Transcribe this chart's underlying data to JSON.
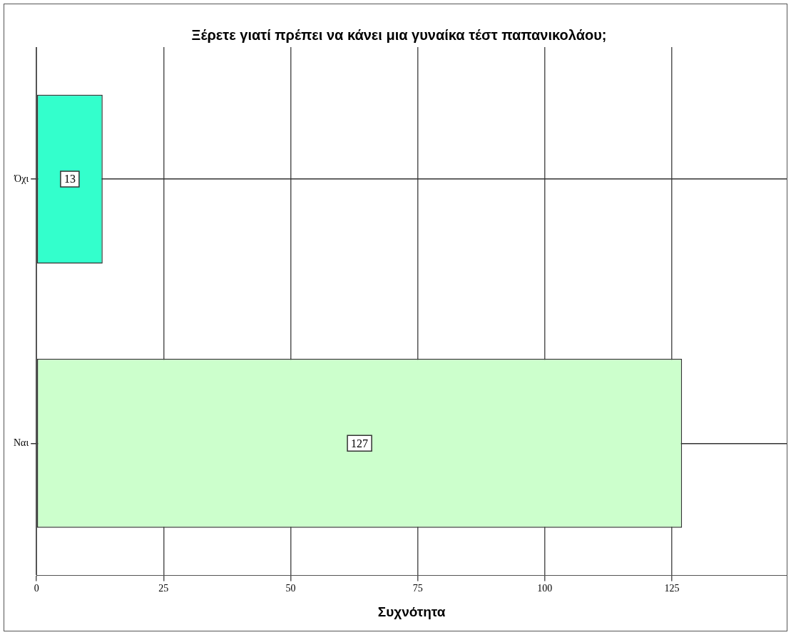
{
  "chart_data": {
    "type": "bar",
    "orientation": "horizontal",
    "title": "Ξέρετε γιατί πρέπει να κάνει μια γυναίκα τέστ παπανικολάου;",
    "xlabel": "Συχνότητα",
    "categories": [
      "Όχι",
      "Ναι"
    ],
    "values": [
      13,
      127
    ],
    "colors": [
      "#33ffcc",
      "#ccffcc"
    ],
    "xlim": [
      0,
      147.6
    ],
    "xticks": [
      0,
      25,
      50,
      75,
      100,
      125
    ],
    "grid": true,
    "data_labels": true
  }
}
